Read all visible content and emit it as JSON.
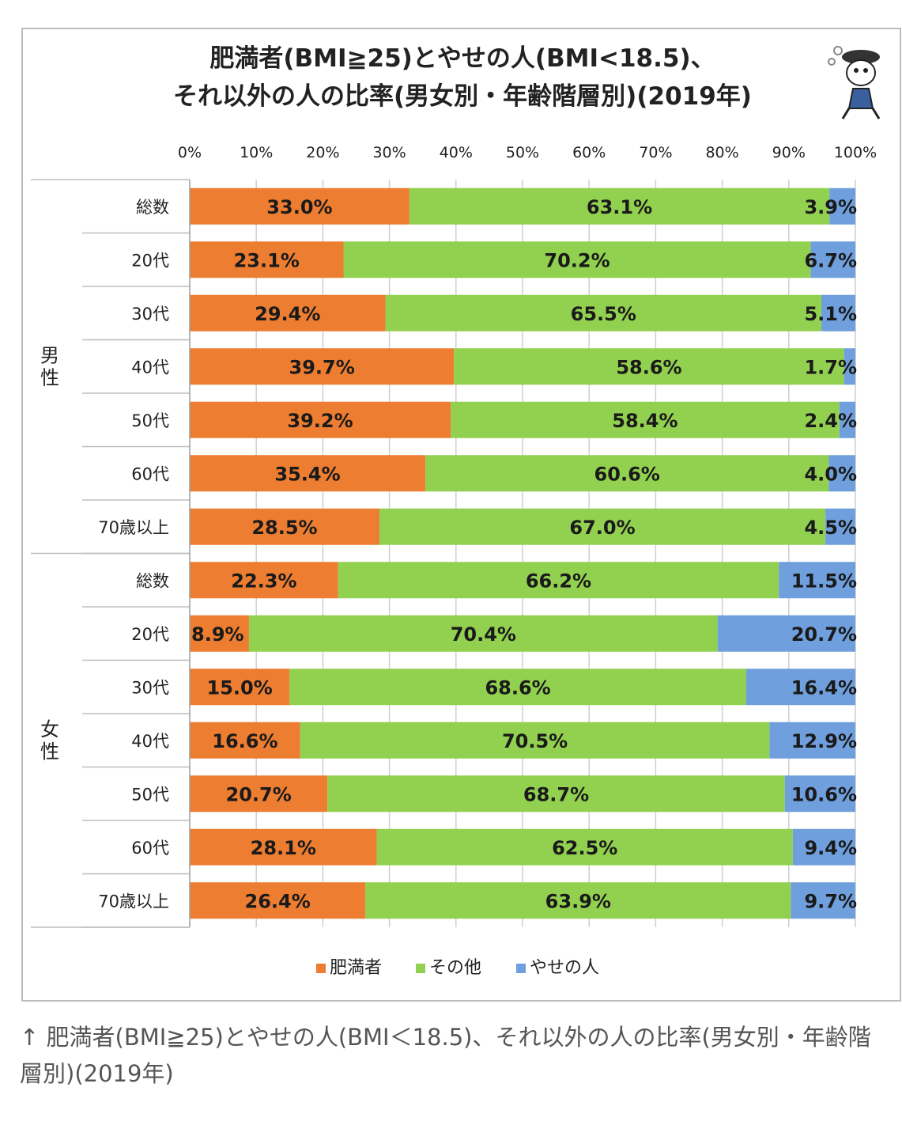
{
  "chart_data": {
    "type": "bar",
    "orientation": "horizontal",
    "stacked": "percent",
    "title_lines": [
      "肥満者(BMI≧25)とやせの人(BMI<18.5)、",
      "それ以外の人の比率(男女別・年齢階層別)(2019年)"
    ],
    "xlim": [
      0,
      100
    ],
    "x_ticks": [
      "0%",
      "10%",
      "20%",
      "30%",
      "40%",
      "50%",
      "60%",
      "70%",
      "80%",
      "90%",
      "100%"
    ],
    "grid": "vertical",
    "legend_position": "bottom",
    "groups": [
      {
        "name": "男性",
        "categories": [
          "総数",
          "20代",
          "30代",
          "40代",
          "50代",
          "60代",
          "70歳以上"
        ],
        "series": [
          {
            "name": "肥満者",
            "values": [
              33.0,
              23.1,
              29.4,
              39.7,
              39.2,
              35.4,
              28.5
            ]
          },
          {
            "name": "その他",
            "values": [
              63.1,
              70.2,
              65.5,
              58.6,
              58.4,
              60.6,
              67.0
            ]
          },
          {
            "name": "やせの人",
            "values": [
              3.9,
              6.7,
              5.1,
              1.7,
              2.4,
              4.0,
              4.5
            ]
          }
        ]
      },
      {
        "name": "女性",
        "categories": [
          "総数",
          "20代",
          "30代",
          "40代",
          "50代",
          "60代",
          "70歳以上"
        ],
        "series": [
          {
            "name": "肥満者",
            "values": [
              22.3,
              8.9,
              15.0,
              16.6,
              20.7,
              28.1,
              26.4
            ]
          },
          {
            "name": "その他",
            "values": [
              66.2,
              70.4,
              68.6,
              70.5,
              68.7,
              62.5,
              63.9
            ]
          },
          {
            "name": "やせの人",
            "values": [
              11.5,
              20.7,
              16.4,
              12.9,
              10.6,
              9.4,
              9.7
            ]
          }
        ]
      }
    ],
    "colors": {
      "肥満者": "#ed7d31",
      "その他": "#92d050",
      "やせの人": "#6f9fdc"
    }
  },
  "caption": "↑ 肥満者(BMI≧25)とやせの人(BMI＜18.5)、それ以外の人の比率(男女別・年齢階層別)(2019年)"
}
